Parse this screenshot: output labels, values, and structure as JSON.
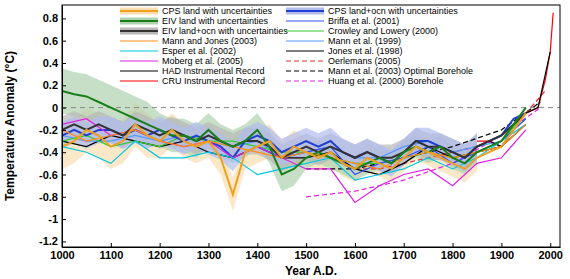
{
  "chart_data": {
    "type": "line",
    "x_label": "Year A.D.",
    "y_label": "Temperature Anomaly (°C)",
    "xlim": [
      1000,
      2020
    ],
    "ylim": [
      -1.25,
      0.92
    ],
    "xticks": [
      1000,
      1100,
      1200,
      1300,
      1400,
      1500,
      1600,
      1700,
      1800,
      1900,
      2000
    ],
    "yticks": [
      -1.2,
      -1,
      -0.8,
      -0.6,
      -0.4,
      -0.2,
      0,
      0.2,
      0.4,
      0.6,
      0.8
    ],
    "grid": false,
    "legend": "top-left",
    "hlines": [
      0
    ],
    "series": [
      {
        "name": "CPS land with uncertainties",
        "color": "#f0a020",
        "x": [
          1000,
          1025,
          1050,
          1075,
          1100,
          1125,
          1150,
          1175,
          1200,
          1225,
          1250,
          1275,
          1300,
          1325,
          1350,
          1375,
          1400,
          1425,
          1450,
          1475,
          1500,
          1525,
          1550,
          1575,
          1600,
          1625,
          1650,
          1675,
          1700,
          1725,
          1750,
          1775,
          1800,
          1825,
          1850,
          1875,
          1900,
          1925,
          1950
        ],
        "values": [
          -0.35,
          -0.3,
          -0.2,
          -0.25,
          -0.35,
          -0.3,
          -0.15,
          -0.25,
          -0.3,
          -0.2,
          -0.3,
          -0.35,
          -0.3,
          -0.45,
          -0.78,
          -0.4,
          -0.35,
          -0.3,
          -0.45,
          -0.35,
          -0.4,
          -0.45,
          -0.4,
          -0.5,
          -0.55,
          -0.45,
          -0.5,
          -0.55,
          -0.45,
          -0.35,
          -0.4,
          -0.45,
          -0.5,
          -0.55,
          -0.45,
          -0.4,
          -0.35,
          -0.2,
          -0.05
        ],
        "error": [
          0.2,
          0.2,
          0.2,
          0.2,
          0.2,
          0.2,
          0.2,
          0.2,
          0.15,
          0.15,
          0.15,
          0.15,
          0.15,
          0.15,
          0.15,
          0.15,
          0.15,
          0.15,
          0.15,
          0.15,
          0.12,
          0.12,
          0.12,
          0.12,
          0.12,
          0.12,
          0.12,
          0.12,
          0.12,
          0.12,
          0.12,
          0.12,
          0.12,
          0.12,
          0.12,
          null,
          null,
          null,
          null
        ]
      },
      {
        "name": "EIV land with uncertainties",
        "color": "#1a7f1a",
        "x": [
          1000,
          1025,
          1050,
          1075,
          1100,
          1125,
          1150,
          1175,
          1200,
          1225,
          1250,
          1275,
          1300,
          1325,
          1350,
          1375,
          1400,
          1425,
          1450,
          1475,
          1500,
          1525,
          1550,
          1575,
          1600,
          1625,
          1650,
          1675,
          1700,
          1725,
          1750,
          1775,
          1800,
          1825,
          1850,
          1875,
          1900,
          1925,
          1950
        ],
        "values": [
          0.15,
          0.12,
          0.1,
          0.05,
          0.0,
          -0.05,
          -0.1,
          -0.15,
          -0.2,
          -0.25,
          -0.25,
          -0.3,
          -0.2,
          -0.3,
          -0.35,
          -0.3,
          -0.2,
          -0.35,
          -0.6,
          -0.55,
          -0.45,
          -0.4,
          -0.45,
          -0.5,
          -0.55,
          -0.5,
          -0.45,
          -0.5,
          -0.4,
          -0.35,
          -0.4,
          -0.35,
          -0.45,
          -0.5,
          -0.4,
          -0.35,
          -0.3,
          -0.15,
          0.0
        ],
        "error": [
          0.2,
          0.2,
          0.2,
          0.2,
          0.2,
          0.2,
          0.2,
          0.2,
          0.15,
          0.15,
          0.15,
          0.15,
          0.15,
          0.15,
          0.15,
          0.15,
          0.15,
          0.15,
          0.15,
          0.15,
          0.1,
          0.1,
          0.1,
          0.1,
          0.1,
          0.1,
          0.1,
          0.1,
          0.1,
          0.1,
          0.1,
          0.1,
          0.1,
          0.1,
          0.1,
          null,
          null,
          null,
          null
        ]
      },
      {
        "name": "EIV land+ocn with uncertainties",
        "color": "#333333",
        "x": [
          1000,
          1025,
          1050,
          1075,
          1100,
          1125,
          1150,
          1175,
          1200,
          1225,
          1250,
          1275,
          1300,
          1325,
          1350,
          1375,
          1400,
          1425,
          1450,
          1475,
          1500,
          1525,
          1550,
          1575,
          1600,
          1625,
          1650,
          1675,
          1700,
          1725,
          1750,
          1775,
          1800,
          1825,
          1850,
          1875,
          1900,
          1925,
          1950
        ],
        "values": [
          -0.2,
          -0.15,
          -0.2,
          -0.15,
          -0.2,
          -0.25,
          -0.15,
          -0.2,
          -0.25,
          -0.2,
          -0.25,
          -0.3,
          -0.25,
          -0.3,
          -0.35,
          -0.3,
          -0.3,
          -0.35,
          -0.45,
          -0.4,
          -0.35,
          -0.4,
          -0.35,
          -0.4,
          -0.45,
          -0.4,
          -0.45,
          -0.45,
          -0.4,
          -0.3,
          -0.35,
          -0.35,
          -0.4,
          -0.45,
          -0.35,
          -0.3,
          -0.25,
          -0.15,
          -0.05
        ],
        "error": [
          0.12,
          0.12,
          0.12,
          0.12,
          0.12,
          0.12,
          0.12,
          0.12,
          0.12,
          0.12,
          0.12,
          0.12,
          0.12,
          0.12,
          0.12,
          0.12,
          0.12,
          0.12,
          0.12,
          0.12,
          0.12,
          0.12,
          0.12,
          0.12,
          0.12,
          0.12,
          0.12,
          0.12,
          0.12,
          0.12,
          0.12,
          0.12,
          0.12,
          0.12,
          0.12,
          null,
          null,
          null,
          null
        ]
      },
      {
        "name": "Mann and Jones (2003)",
        "color": "#ff8c1a",
        "x": [
          1000,
          1050,
          1100,
          1150,
          1200,
          1250,
          1300,
          1350,
          1400,
          1450,
          1500,
          1550,
          1600,
          1650,
          1700,
          1750,
          1800,
          1850,
          1900,
          1950
        ],
        "values": [
          -0.2,
          -0.3,
          -0.25,
          -0.2,
          -0.3,
          -0.35,
          -0.3,
          -0.35,
          -0.4,
          -0.45,
          -0.4,
          -0.45,
          -0.5,
          -0.55,
          -0.45,
          -0.4,
          -0.45,
          -0.4,
          -0.35,
          -0.15
        ]
      },
      {
        "name": "Esper et al. (2002)",
        "color": "#00c8e0",
        "x": [
          1000,
          1050,
          1100,
          1150,
          1200,
          1250,
          1300,
          1350,
          1400,
          1450,
          1500,
          1550,
          1600,
          1650,
          1700,
          1750,
          1800,
          1850,
          1900,
          1950
        ],
        "values": [
          -0.35,
          -0.4,
          -0.5,
          -0.3,
          -0.45,
          -0.45,
          -0.4,
          -0.45,
          -0.6,
          -0.55,
          -0.5,
          -0.45,
          -0.65,
          -0.6,
          -0.55,
          -0.45,
          -0.55,
          -0.45,
          -0.3,
          -0.15
        ]
      },
      {
        "name": "Moberg et al. (2005)",
        "color": "#e020e0",
        "x": [
          1000,
          1050,
          1100,
          1150,
          1200,
          1250,
          1300,
          1350,
          1400,
          1450,
          1500,
          1550,
          1600,
          1650,
          1700,
          1750,
          1800,
          1850,
          1900,
          1950
        ],
        "values": [
          -0.15,
          -0.1,
          -0.25,
          -0.2,
          -0.3,
          -0.35,
          -0.3,
          -0.45,
          -0.35,
          -0.45,
          -0.55,
          -0.55,
          -0.85,
          -0.7,
          -0.6,
          -0.55,
          -0.7,
          -0.5,
          -0.45,
          -0.2
        ]
      },
      {
        "name": "HAD Instrumental Record",
        "color": "#000000",
        "x": [
          1850,
          1875,
          1900,
          1925,
          1950,
          1975,
          2000
        ],
        "values": [
          -0.35,
          -0.3,
          -0.35,
          -0.2,
          -0.05,
          0.0,
          0.5
        ]
      },
      {
        "name": "CRU Instrumental Record",
        "color": "#ff0000",
        "x": [
          1850,
          1875,
          1900,
          1925,
          1950,
          1975,
          1990,
          2000,
          2006
        ],
        "values": [
          -0.3,
          -0.3,
          -0.35,
          -0.2,
          -0.05,
          0.0,
          0.25,
          0.5,
          0.85
        ]
      },
      {
        "name": "CPS land+ocn with uncertainties",
        "color": "#1f3fd0",
        "x": [
          1000,
          1025,
          1050,
          1075,
          1100,
          1125,
          1150,
          1175,
          1200,
          1225,
          1250,
          1275,
          1300,
          1325,
          1350,
          1375,
          1400,
          1425,
          1450,
          1475,
          1500,
          1525,
          1550,
          1575,
          1600,
          1625,
          1650,
          1675,
          1700,
          1725,
          1750,
          1775,
          1800,
          1825,
          1850,
          1875,
          1900,
          1925,
          1950
        ],
        "values": [
          -0.25,
          -0.2,
          -0.25,
          -0.2,
          -0.2,
          -0.25,
          -0.2,
          -0.25,
          -0.2,
          -0.25,
          -0.3,
          -0.25,
          -0.3,
          -0.35,
          -0.45,
          -0.3,
          -0.25,
          -0.3,
          -0.4,
          -0.35,
          -0.3,
          -0.35,
          -0.3,
          -0.4,
          -0.45,
          -0.4,
          -0.45,
          -0.5,
          -0.4,
          -0.3,
          -0.3,
          -0.35,
          -0.4,
          -0.45,
          -0.35,
          -0.3,
          -0.25,
          -0.1,
          -0.05
        ],
        "error": [
          0.12,
          0.12,
          0.12,
          0.12,
          0.12,
          0.12,
          0.12,
          0.12,
          0.12,
          0.12,
          0.12,
          0.12,
          0.12,
          0.12,
          0.12,
          0.12,
          0.12,
          0.12,
          0.12,
          0.12,
          0.12,
          0.12,
          0.12,
          0.12,
          0.12,
          0.12,
          0.12,
          0.12,
          0.12,
          0.12,
          0.12,
          0.12,
          0.12,
          0.12,
          0.12,
          null,
          null,
          null,
          null
        ]
      },
      {
        "name": "Briffa et al. (2001)",
        "color": "#3050ff",
        "x": [
          1400,
          1450,
          1500,
          1550,
          1600,
          1650,
          1700,
          1750,
          1800,
          1850,
          1900,
          1950
        ],
        "values": [
          -0.35,
          -0.45,
          -0.4,
          -0.35,
          -0.6,
          -0.5,
          -0.45,
          -0.35,
          -0.5,
          -0.4,
          -0.3,
          -0.1
        ]
      },
      {
        "name": "Crowley and Lowery (2000)",
        "color": "#33cc33",
        "x": [
          1000,
          1050,
          1100,
          1150,
          1200,
          1250,
          1300,
          1350,
          1400,
          1450,
          1500,
          1550,
          1600,
          1650,
          1700,
          1750,
          1800,
          1850,
          1900,
          1950
        ],
        "values": [
          -0.3,
          -0.25,
          -0.35,
          -0.3,
          -0.35,
          -0.25,
          -0.3,
          -0.3,
          -0.35,
          -0.4,
          -0.4,
          -0.45,
          -0.5,
          -0.5,
          -0.45,
          -0.4,
          -0.45,
          -0.4,
          -0.3,
          -0.05
        ]
      },
      {
        "name": "Mann et al. (1999)",
        "color": "#5599ff",
        "x": [
          1000,
          1050,
          1100,
          1150,
          1200,
          1250,
          1300,
          1350,
          1400,
          1450,
          1500,
          1550,
          1600,
          1650,
          1700,
          1750,
          1800,
          1850,
          1900,
          1950
        ],
        "values": [
          -0.25,
          -0.3,
          -0.3,
          -0.25,
          -0.3,
          -0.25,
          -0.3,
          -0.35,
          -0.3,
          -0.45,
          -0.4,
          -0.35,
          -0.45,
          -0.45,
          -0.35,
          -0.3,
          -0.4,
          -0.35,
          -0.3,
          -0.1
        ]
      },
      {
        "name": "Jones et al. (1998)",
        "color": "#000000",
        "x": [
          1000,
          1050,
          1100,
          1150,
          1200,
          1250,
          1300,
          1350,
          1400,
          1450,
          1500,
          1550,
          1600,
          1650,
          1700,
          1750,
          1800,
          1850,
          1900,
          1950
        ],
        "values": [
          -0.3,
          -0.35,
          -0.25,
          -0.3,
          -0.35,
          -0.3,
          -0.4,
          -0.45,
          -0.35,
          -0.45,
          -0.45,
          -0.4,
          -0.55,
          -0.6,
          -0.5,
          -0.35,
          -0.45,
          -0.4,
          -0.35,
          -0.15
        ]
      },
      {
        "name": "Oerlemans (2005)",
        "color": "#e03030",
        "line_style": "dashed",
        "x": [
          1600,
          1650,
          1700,
          1750,
          1800,
          1850,
          1900,
          1950,
          1990
        ],
        "values": [
          -0.55,
          -0.55,
          -0.5,
          -0.45,
          -0.4,
          -0.35,
          -0.25,
          -0.05,
          0.15
        ]
      },
      {
        "name": "Mann et al. (2003) Optimal Borehole",
        "color": "#000000",
        "line_style": "dashed",
        "x": [
          1500,
          1600,
          1700,
          1800,
          1900,
          1980
        ],
        "values": [
          -0.55,
          -0.55,
          -0.45,
          -0.35,
          -0.2,
          0.05
        ]
      },
      {
        "name": "Huang et al. (2000) Borehole",
        "color": "#e020e0",
        "line_style": "dashed",
        "x": [
          1500,
          1600,
          1700,
          1800,
          1900,
          1980
        ],
        "values": [
          -0.8,
          -0.75,
          -0.65,
          -0.5,
          -0.25,
          0.0
        ]
      }
    ]
  }
}
